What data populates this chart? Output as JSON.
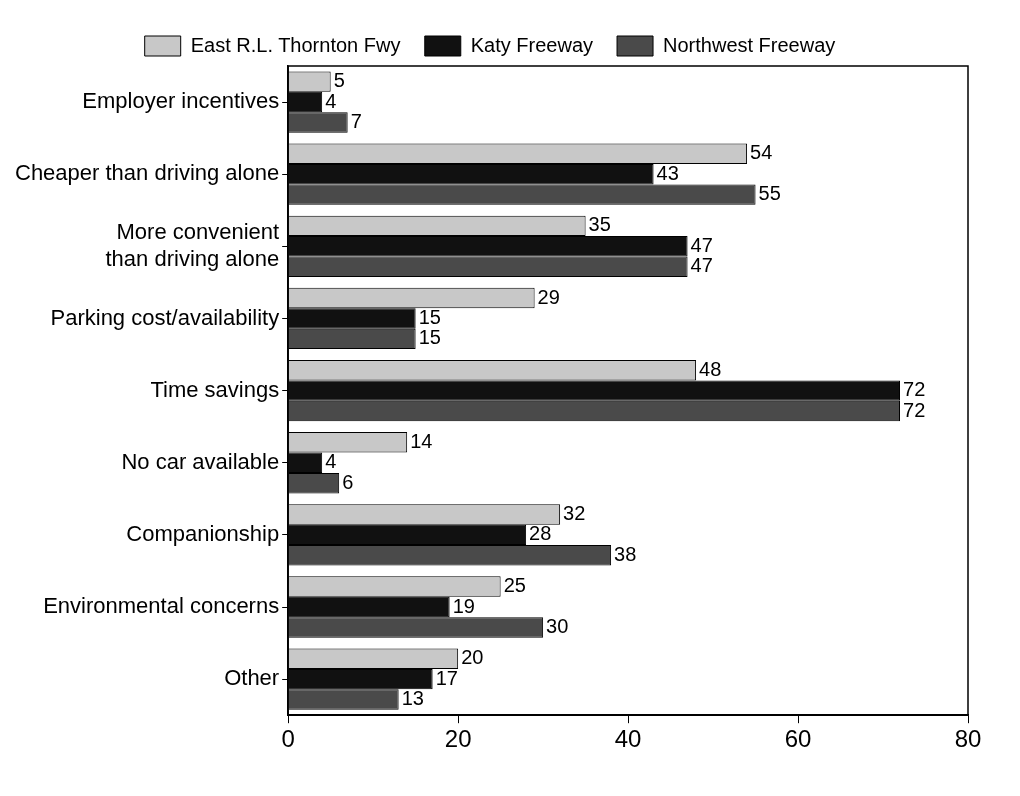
{
  "chart_data": {
    "type": "bar",
    "orientation": "horizontal",
    "categories": [
      "Employer incentives",
      "Cheaper than driving alone",
      "More convenient than driving alone",
      "Parking cost/availability",
      "Time savings",
      "No car available",
      "Companionship",
      "Environmental concerns",
      "Other"
    ],
    "series": [
      {
        "name": "East R.L. Thornton Fwy",
        "color": "#c8c8c8",
        "values": [
          5,
          54,
          35,
          29,
          48,
          14,
          32,
          25,
          20
        ]
      },
      {
        "name": "Katy Freeway",
        "color": "#111111",
        "values": [
          4,
          43,
          47,
          15,
          72,
          4,
          28,
          19,
          17
        ]
      },
      {
        "name": "Northwest Freeway",
        "color": "#4a4a4a",
        "values": [
          7,
          55,
          47,
          15,
          72,
          6,
          38,
          30,
          13
        ]
      }
    ],
    "xlim": [
      0,
      80
    ],
    "xticks": [
      0,
      20,
      40,
      60,
      80
    ],
    "grid": false,
    "legend": "top",
    "data_labels": true
  }
}
